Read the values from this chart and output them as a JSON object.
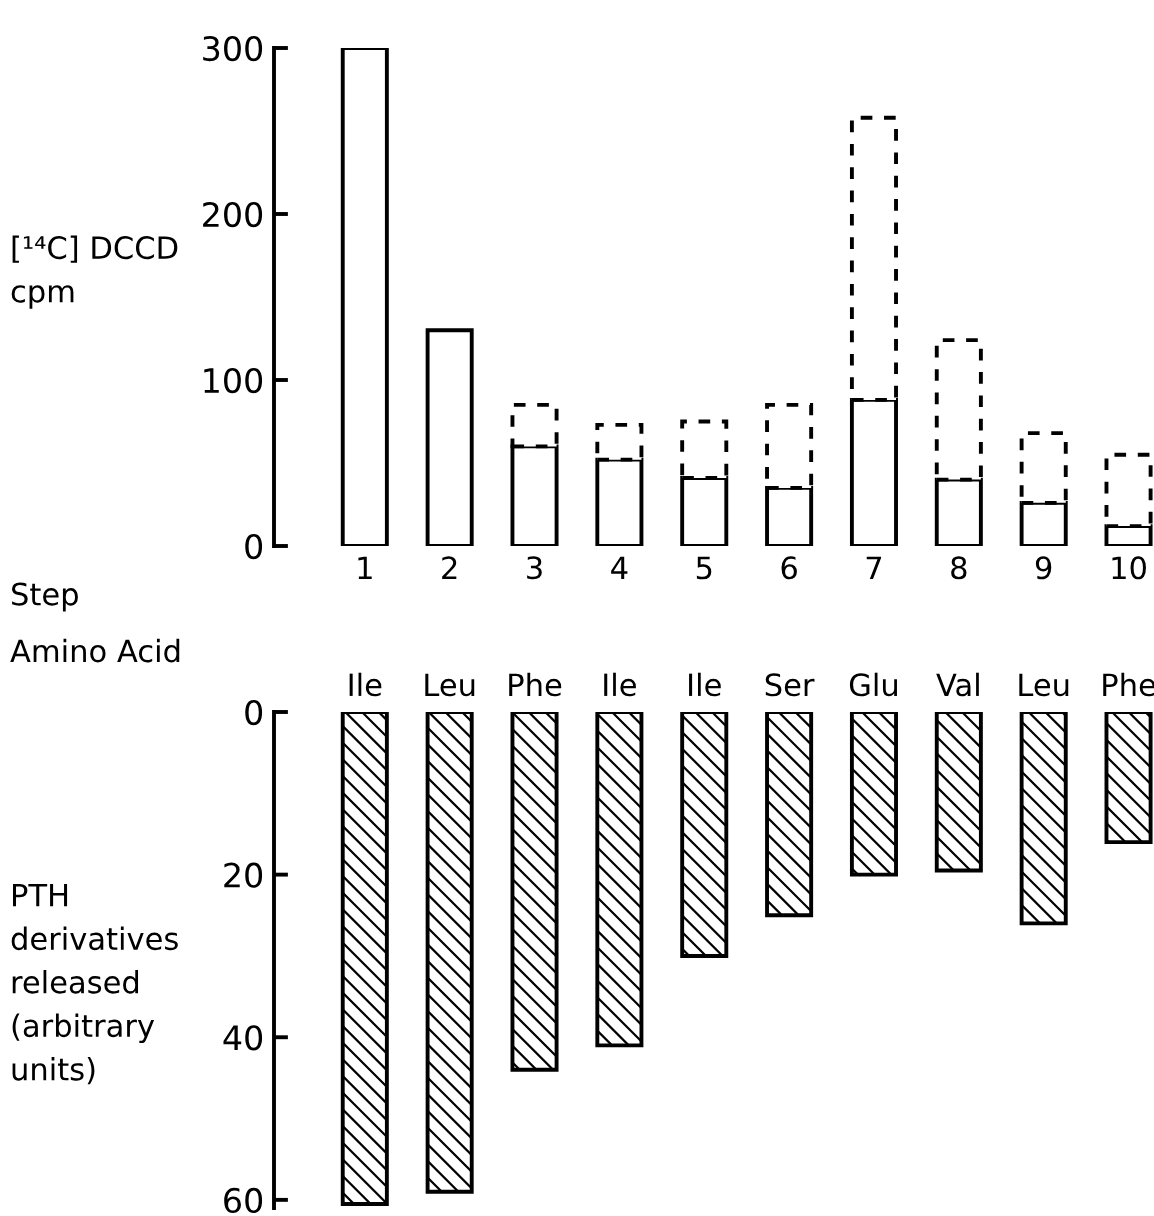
{
  "chart_data": [
    {
      "type": "bar",
      "stacked": true,
      "xlabel": "Step",
      "ylabel": "[¹⁴C] DCCD\ncpm",
      "categories": [
        "1",
        "2",
        "3",
        "4",
        "5",
        "6",
        "7",
        "8",
        "9",
        "10"
      ],
      "ylim": [
        0,
        300
      ],
      "yticks": [
        0,
        100,
        200,
        300
      ],
      "grid": false,
      "legend": false,
      "series": [
        {
          "color": "#000000",
          "line_style": "solid",
          "values": [
            300,
            130,
            60,
            52,
            41,
            35,
            88,
            40,
            26,
            12
          ]
        },
        {
          "color": "#000000",
          "line_style": "dashed",
          "values": [
            null,
            null,
            25,
            21,
            34,
            50,
            170,
            84,
            42,
            43
          ]
        }
      ]
    },
    {
      "type": "bar",
      "xlabel": "Amino Acid",
      "ylabel": "PTH\nderivatives\nreleased\n(arbitrary\nunits)",
      "categories": [
        "Ile",
        "Leu",
        "Phe",
        "Ile",
        "Ile",
        "Ser",
        "Glu",
        "Val",
        "Leu",
        "Phe"
      ],
      "ylim": [
        61,
        0
      ],
      "yticks": [
        0,
        20,
        40,
        60
      ],
      "grid": false,
      "legend": false,
      "series": [
        {
          "color": "#000000",
          "line_style": "solid",
          "values": [
            60.5,
            59,
            44,
            41,
            30,
            25,
            20,
            19.5,
            26,
            16
          ]
        }
      ]
    }
  ]
}
